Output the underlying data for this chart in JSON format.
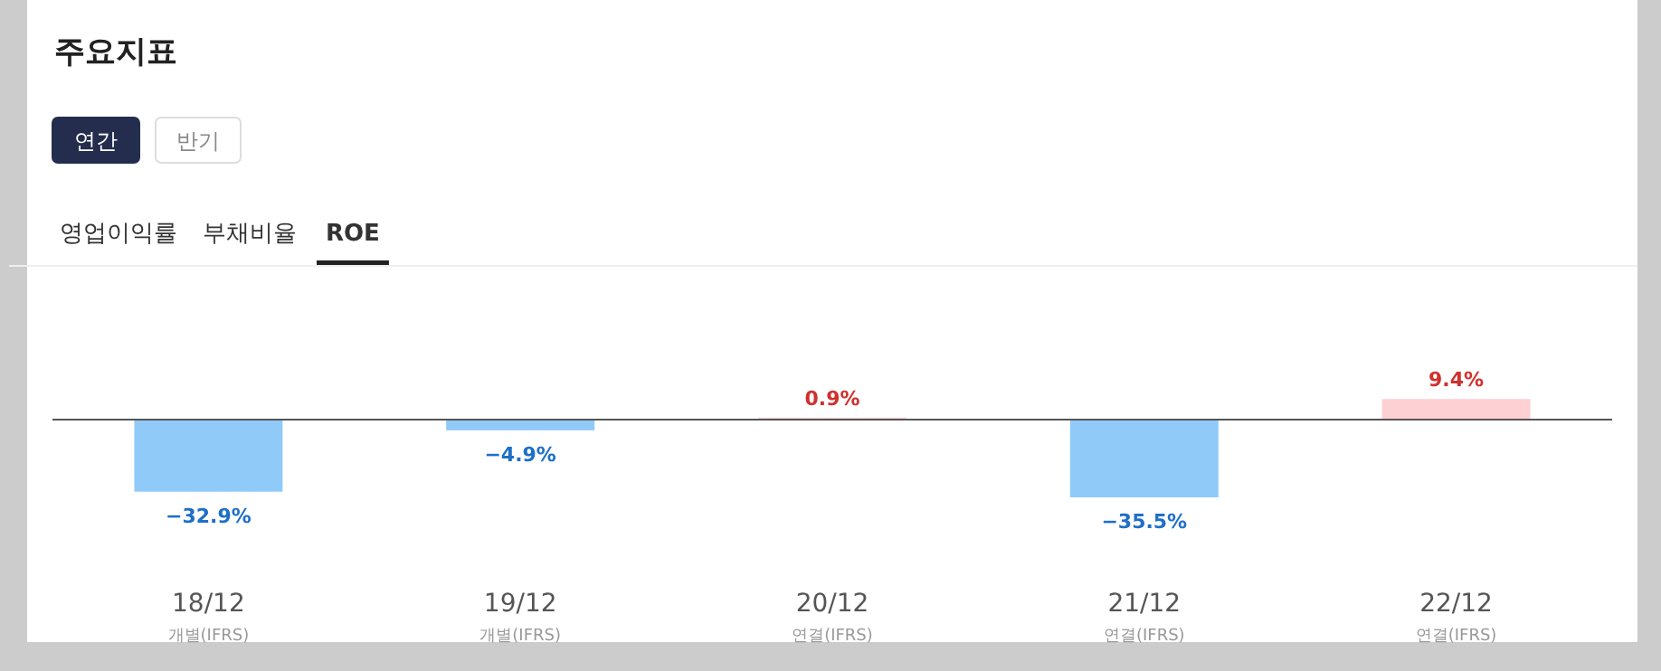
{
  "chart_data": {
    "type": "bar",
    "title": "주요지표",
    "categories": [
      "18/12",
      "19/12",
      "20/12",
      "21/12",
      "22/12"
    ],
    "values": [
      -32.9,
      -4.9,
      0.9,
      -35.5,
      9.4
    ],
    "value_labels": [
      "−32.9%",
      "−4.9%",
      "0.9%",
      "−35.5%",
      "9.4%"
    ],
    "colors": [
      "#90caf9",
      "#90caf9",
      "#fdd0d3",
      "#90caf9",
      "#fdd0d3"
    ],
    "annotations": [
      "개별(IFRS)",
      "개별(IFRS)",
      "연결(IFRS)",
      "연결(IFRS)",
      "연결(IFRS)",
      "연간",
      "반기",
      "영업이익률",
      "부채비율",
      "ROE"
    ]
  }
}
